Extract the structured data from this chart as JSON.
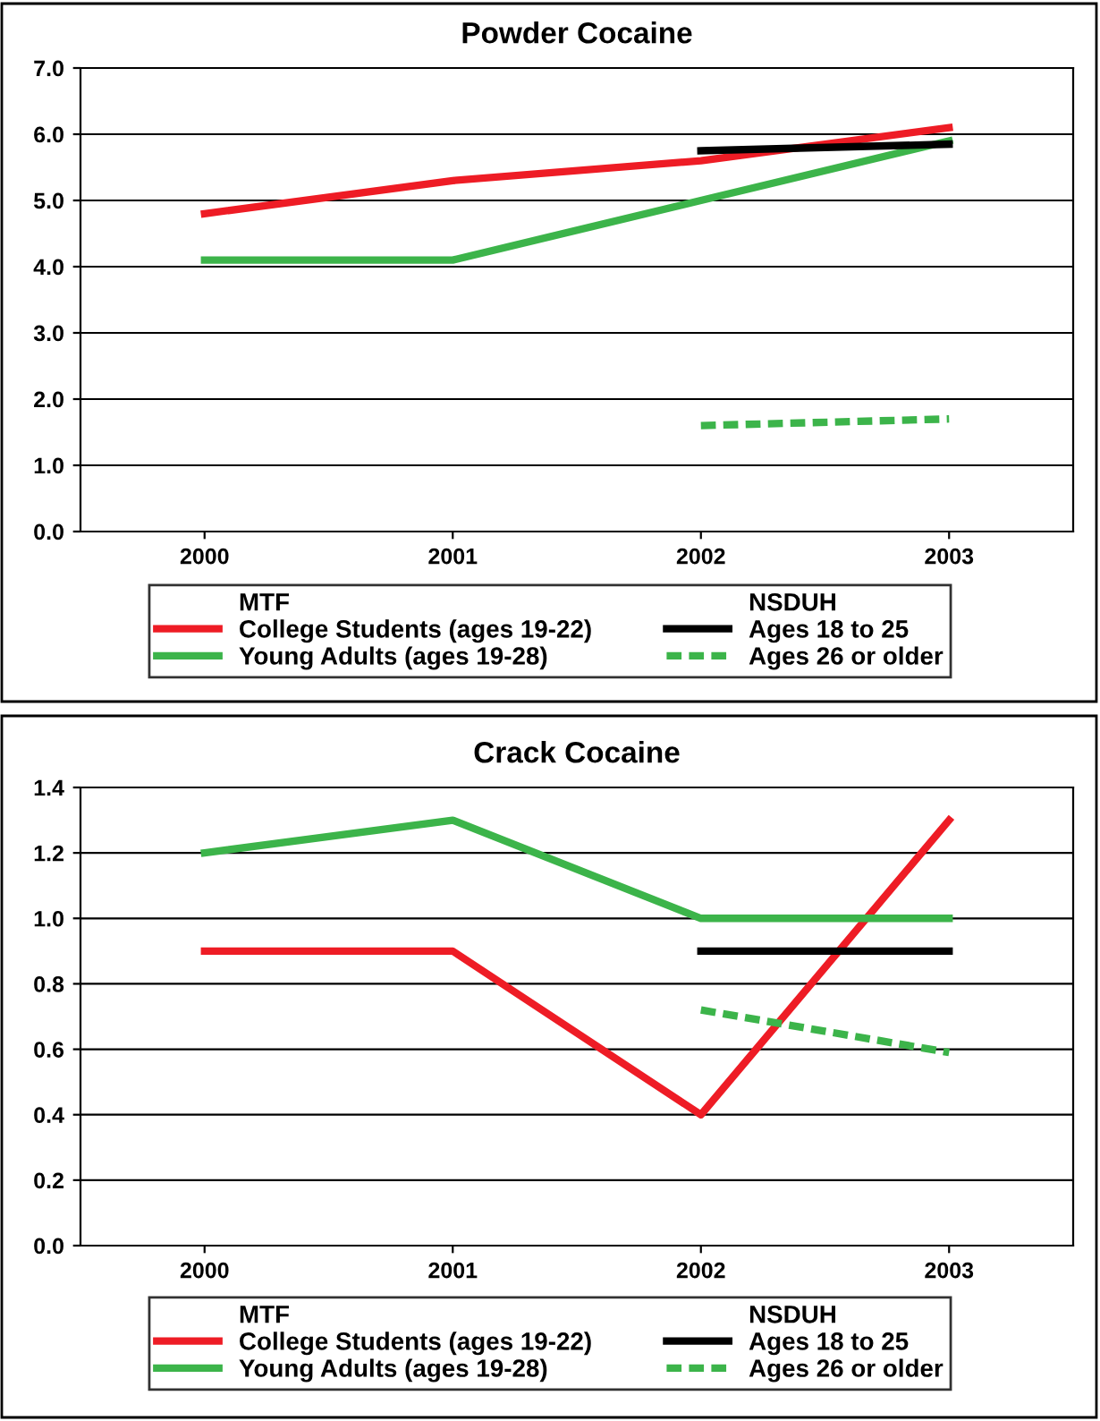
{
  "chart_data": [
    {
      "type": "line",
      "title": "Powder Cocaine",
      "categories": [
        "2000",
        "2001",
        "2002",
        "2003"
      ],
      "ylim": [
        0,
        7
      ],
      "yticks": [
        {
          "value": 0,
          "label": "0.0"
        },
        {
          "value": 1,
          "label": "1.0"
        },
        {
          "value": 2,
          "label": "2.0"
        },
        {
          "value": 3,
          "label": "3.0"
        },
        {
          "value": 4,
          "label": "4.0"
        },
        {
          "value": 5,
          "label": "5.0"
        },
        {
          "value": 6,
          "label": "6.0"
        },
        {
          "value": 7,
          "label": "7.0"
        }
      ],
      "grid": "y",
      "legend": "bottom",
      "line_style": "solid",
      "annotations": [
        "MTF",
        "NSDUH"
      ],
      "series": [
        {
          "name": "College Students (ages 19-22)",
          "color": "#ee1c25",
          "values": [
            4.8,
            5.3,
            5.6,
            6.1
          ]
        },
        {
          "name": "Young Adults (ages 19-28)",
          "color": "#3cb44a",
          "values": [
            4.1,
            4.1,
            5.0,
            5.9
          ]
        },
        {
          "name": "Ages 18 to 25",
          "color": "#000000",
          "values": [
            null,
            null,
            5.75,
            5.85
          ]
        },
        {
          "name": "Ages 26 or older",
          "color": "#3cb44a",
          "line_style": "dashed",
          "values": [
            null,
            null,
            1.6,
            1.7
          ]
        }
      ]
    },
    {
      "type": "line",
      "title": "Crack Cocaine",
      "categories": [
        "2000",
        "2001",
        "2002",
        "2003"
      ],
      "ylim": [
        0,
        1.4
      ],
      "yticks": [
        {
          "value": 0,
          "label": "0.0"
        },
        0.2,
        0.4,
        0.6,
        0.8,
        {
          "value": 1,
          "label": "1.0"
        },
        1.2,
        1.4
      ],
      "grid": "y",
      "legend": "bottom",
      "line_style": "solid",
      "annotations": [
        "MTF",
        "NSDUH"
      ],
      "series": [
        {
          "name": "College Students (ages 19-22)",
          "color": "#ee1c25",
          "values": [
            0.9,
            0.9,
            0.4,
            1.3
          ]
        },
        {
          "name": "Young Adults (ages 19-28)",
          "color": "#3cb44a",
          "values": [
            1.2,
            1.3,
            1.0,
            1.0
          ]
        },
        {
          "name": "Ages 18 to 25",
          "color": "#000000",
          "values": [
            null,
            null,
            0.9,
            0.9
          ]
        },
        {
          "name": "Ages 26 or older",
          "color": "#3cb44a",
          "line_style": "dashed",
          "values": [
            null,
            null,
            0.72,
            0.59
          ]
        }
      ]
    }
  ]
}
